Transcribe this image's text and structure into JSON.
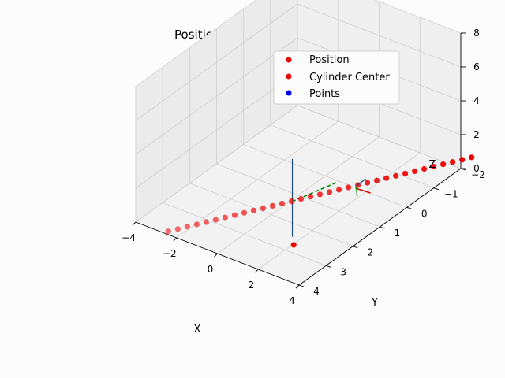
{
  "chart_data": {
    "type": "scatter",
    "projection": "3d",
    "title": "Position and Orientation Plot",
    "xlabel": "X",
    "ylabel": "Y",
    "zlabel": "Z",
    "xlim": [
      -4,
      4
    ],
    "ylim": [
      -2,
      4
    ],
    "zlim": [
      0,
      8
    ],
    "x_ticks": [
      "−4",
      "−2",
      "0",
      "2",
      "4"
    ],
    "y_ticks": [
      "−2",
      "−1",
      "0",
      "1",
      "2",
      "3",
      "4"
    ],
    "z_ticks": [
      "0",
      "2",
      "4",
      "6",
      "8"
    ],
    "grid": true,
    "legend_position": "top-right",
    "series": [
      {
        "name": "Position",
        "color": "#ee0000",
        "points": [
          [
            -2.4,
            4.0,
            0.2
          ],
          [
            -2.2,
            3.8,
            0.2
          ],
          [
            -2.0,
            3.6,
            0.2
          ],
          [
            -1.8,
            3.4,
            0.2
          ],
          [
            -1.6,
            3.2,
            0.2
          ],
          [
            -1.4,
            3.0,
            0.2
          ],
          [
            -1.2,
            2.8,
            0.2
          ],
          [
            -1.0,
            2.6,
            0.2
          ],
          [
            -0.8,
            2.4,
            0.2
          ],
          [
            -0.6,
            2.2,
            0.2
          ],
          [
            -0.4,
            2.0,
            0.2
          ],
          [
            -0.2,
            1.8,
            0.2
          ],
          [
            0.0,
            1.6,
            0.2
          ],
          [
            0.2,
            1.4,
            0.2
          ],
          [
            0.4,
            1.2,
            0.2
          ],
          [
            0.6,
            1.0,
            0.2
          ],
          [
            0.8,
            0.8,
            0.2
          ],
          [
            1.0,
            0.6,
            0.2
          ],
          [
            1.2,
            0.4,
            0.2
          ],
          [
            1.4,
            0.2,
            0.2
          ],
          [
            1.6,
            0.0,
            0.2
          ],
          [
            1.8,
            -0.2,
            0.2
          ],
          [
            2.0,
            -0.4,
            0.2
          ],
          [
            2.2,
            -0.6,
            0.2
          ],
          [
            2.4,
            -0.8,
            0.2
          ],
          [
            2.6,
            -1.0,
            0.2
          ],
          [
            2.8,
            -1.2,
            0.2
          ],
          [
            3.0,
            -1.4,
            0.2
          ],
          [
            3.2,
            -1.6,
            0.2
          ],
          [
            3.4,
            -1.8,
            0.2
          ],
          [
            3.6,
            -2.0,
            0.2
          ],
          [
            3.8,
            -2.2,
            0.2
          ],
          [
            4.0,
            -2.4,
            0.2
          ]
        ]
      },
      {
        "name": "Cylinder Center",
        "color": "#ee0000",
        "points": [
          [
            4.0,
            4.2,
            2.6
          ]
        ]
      },
      {
        "name": "Points",
        "color": "#0000ee",
        "points": []
      }
    ],
    "lines": [
      {
        "name": "cylinder-axis",
        "color": "#1f4e79",
        "style": "solid",
        "from": [
          4.2,
          4.4,
          3.4
        ],
        "to": [
          4.2,
          4.4,
          8.0
        ]
      },
      {
        "name": "green-dashed-line",
        "color": "#008800",
        "style": "dashed",
        "from": [
          0.8,
          0.2,
          0.2
        ],
        "to": [
          4.0,
          4.2,
          5.2
        ]
      }
    ]
  }
}
